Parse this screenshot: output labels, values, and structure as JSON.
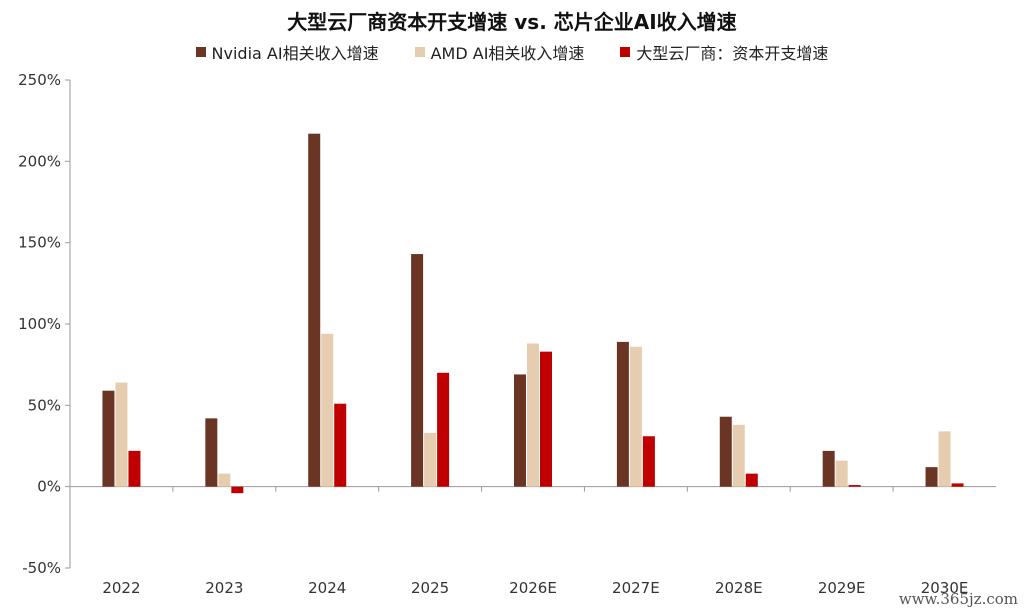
{
  "chart_data": {
    "type": "bar",
    "title": "大型云厂商资本开支增速 vs. 芯片企业AI收入增速",
    "categories": [
      "2022",
      "2023",
      "2024",
      "2025",
      "2026E",
      "2027E",
      "2028E",
      "2029E",
      "2030E"
    ],
    "series": [
      {
        "name": "Nvidia AI相关收入增速",
        "color": "#6b3526",
        "values": [
          59,
          42,
          217,
          143,
          69,
          89,
          43,
          22,
          12
        ]
      },
      {
        "name": "AMD AI相关收入增速",
        "color": "#e6cdb0",
        "values": [
          64,
          8,
          94,
          33,
          88,
          86,
          38,
          16,
          34
        ]
      },
      {
        "name": "大型云厂商：资本开支增速",
        "color": "#c00000",
        "values": [
          22,
          -4,
          51,
          70,
          83,
          31,
          8,
          1,
          2
        ]
      }
    ],
    "ylim": [
      -50,
      250
    ],
    "yticks": [
      -50,
      0,
      50,
      100,
      150,
      200,
      250
    ],
    "ytick_labels": [
      "-50%",
      "0%",
      "50%",
      "100%",
      "150%",
      "200%",
      "250%"
    ],
    "legend_position": "top",
    "grid": false
  },
  "watermark": "www.365jz.com"
}
